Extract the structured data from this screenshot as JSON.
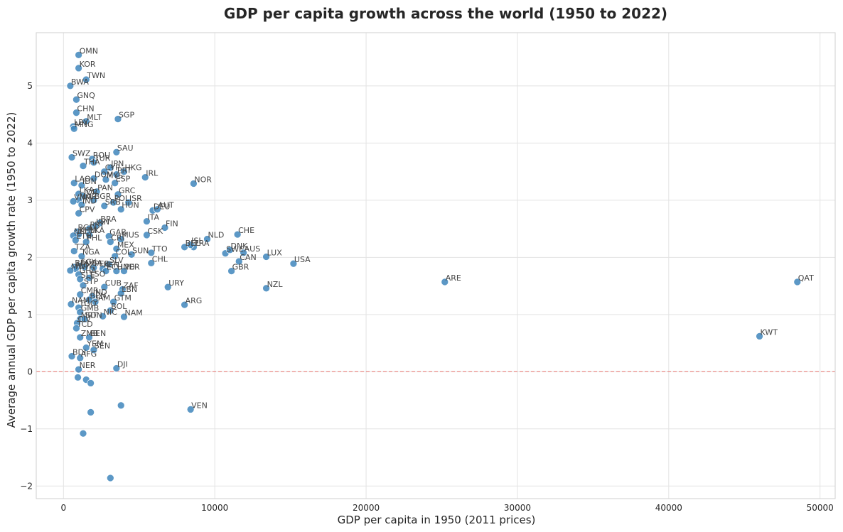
{
  "chart_data": {
    "type": "scatter",
    "title": "GDP per capita growth across the world (1950 to 2022)",
    "xlabel": "GDP per capita in 1950 (2011 prices)",
    "ylabel": "Average annual GDP per capita growth rate (1950 to 2022)",
    "xlim": [
      -1800,
      51000
    ],
    "ylim": [
      -2.22,
      5.93
    ],
    "xticks": [
      0,
      10000,
      20000,
      30000,
      40000,
      50000
    ],
    "yticks": [
      -2,
      -1,
      0,
      1,
      2,
      3,
      4,
      5
    ],
    "grid": true,
    "reference_line": {
      "y": 0,
      "style": "dashed",
      "color": "#e8736e"
    },
    "colors": {
      "point": "#3f86bc",
      "reference": "#e8736e"
    },
    "points": [
      {
        "x": 1000,
        "y": 5.54,
        "label": "OMN"
      },
      {
        "x": 1000,
        "y": 5.31,
        "label": "KOR"
      },
      {
        "x": 1500,
        "y": 5.11,
        "label": "TWN"
      },
      {
        "x": 450,
        "y": 5.0,
        "label": "BWA"
      },
      {
        "x": 850,
        "y": 4.76,
        "label": "GNQ"
      },
      {
        "x": 850,
        "y": 4.53,
        "label": "CHN"
      },
      {
        "x": 1500,
        "y": 4.38,
        "label": "MLT"
      },
      {
        "x": 3600,
        "y": 4.42,
        "label": "SGP"
      },
      {
        "x": 650,
        "y": 4.29,
        "label": "LBY"
      },
      {
        "x": 700,
        "y": 4.25,
        "label": "MNG"
      },
      {
        "x": 550,
        "y": 3.75,
        "label": "SWZ"
      },
      {
        "x": 1900,
        "y": 3.72,
        "label": "ROU"
      },
      {
        "x": 2000,
        "y": 3.66,
        "label": "TUR"
      },
      {
        "x": 3500,
        "y": 3.84,
        "label": "SAU"
      },
      {
        "x": 1300,
        "y": 3.6,
        "label": "THA"
      },
      {
        "x": 3100,
        "y": 3.57,
        "label": "JPN"
      },
      {
        "x": 2700,
        "y": 3.5,
        "label": "CYP"
      },
      {
        "x": 3500,
        "y": 3.45,
        "label": "PRT"
      },
      {
        "x": 4000,
        "y": 3.5,
        "label": "HKG"
      },
      {
        "x": 5400,
        "y": 3.4,
        "label": "IRL"
      },
      {
        "x": 2000,
        "y": 3.38,
        "label": "DOM"
      },
      {
        "x": 2800,
        "y": 3.36,
        "label": "MYS"
      },
      {
        "x": 3400,
        "y": 3.3,
        "label": "ESP"
      },
      {
        "x": 700,
        "y": 3.3,
        "label": "LAO"
      },
      {
        "x": 1200,
        "y": 3.26,
        "label": "IDN"
      },
      {
        "x": 8600,
        "y": 3.29,
        "label": "NOR"
      },
      {
        "x": 1000,
        "y": 3.11,
        "label": "LKA"
      },
      {
        "x": 2200,
        "y": 3.15,
        "label": "PAN"
      },
      {
        "x": 3600,
        "y": 3.1,
        "label": "GRC"
      },
      {
        "x": 1300,
        "y": 3.07,
        "label": "JOR"
      },
      {
        "x": 1000,
        "y": 3.0,
        "label": "MAR"
      },
      {
        "x": 2000,
        "y": 3.0,
        "label": "BGR"
      },
      {
        "x": 3300,
        "y": 2.96,
        "label": "POL"
      },
      {
        "x": 4300,
        "y": 2.96,
        "label": "ISR"
      },
      {
        "x": 650,
        "y": 2.98,
        "label": "VNM"
      },
      {
        "x": 1200,
        "y": 2.92,
        "label": "IND"
      },
      {
        "x": 2700,
        "y": 2.9,
        "label": "SRB"
      },
      {
        "x": 3800,
        "y": 2.84,
        "label": "HUN"
      },
      {
        "x": 5900,
        "y": 2.82,
        "label": "DEU"
      },
      {
        "x": 6200,
        "y": 2.84,
        "label": "AUT"
      },
      {
        "x": 1000,
        "y": 2.77,
        "label": "CPV"
      },
      {
        "x": 5500,
        "y": 2.63,
        "label": "ITA"
      },
      {
        "x": 2400,
        "y": 2.6,
        "label": "BRA"
      },
      {
        "x": 2100,
        "y": 2.55,
        "label": "IRN"
      },
      {
        "x": 1700,
        "y": 2.5,
        "label": "PRY"
      },
      {
        "x": 6700,
        "y": 2.52,
        "label": "FIN"
      },
      {
        "x": 900,
        "y": 2.45,
        "label": "BGD"
      },
      {
        "x": 1000,
        "y": 2.4,
        "label": "KHM"
      },
      {
        "x": 1700,
        "y": 2.4,
        "label": "LKA"
      },
      {
        "x": 3000,
        "y": 2.37,
        "label": "GAB"
      },
      {
        "x": 5500,
        "y": 2.39,
        "label": "CSK"
      },
      {
        "x": 11500,
        "y": 2.4,
        "label": "CHE"
      },
      {
        "x": 650,
        "y": 2.38,
        "label": "NPL"
      },
      {
        "x": 800,
        "y": 2.3,
        "label": "ETH"
      },
      {
        "x": 3800,
        "y": 2.32,
        "label": "MUS"
      },
      {
        "x": 9500,
        "y": 2.32,
        "label": "NLD"
      },
      {
        "x": 1500,
        "y": 2.27,
        "label": "PHL"
      },
      {
        "x": 3100,
        "y": 2.27,
        "label": "CRI"
      },
      {
        "x": 8000,
        "y": 2.18,
        "label": "BEL"
      },
      {
        "x": 8600,
        "y": 2.18,
        "label": "FRA"
      },
      {
        "x": 8400,
        "y": 2.22,
        "label": "ISL"
      },
      {
        "x": 3500,
        "y": 2.15,
        "label": "MEX"
      },
      {
        "x": 700,
        "y": 2.11,
        "label": "TZA"
      },
      {
        "x": 5800,
        "y": 2.08,
        "label": "TTO"
      },
      {
        "x": 10700,
        "y": 2.07,
        "label": "SWE"
      },
      {
        "x": 11000,
        "y": 2.13,
        "label": "DNK"
      },
      {
        "x": 11900,
        "y": 2.08,
        "label": "AUS"
      },
      {
        "x": 4500,
        "y": 2.05,
        "label": "SUN"
      },
      {
        "x": 3400,
        "y": 2.02,
        "label": "COL"
      },
      {
        "x": 1200,
        "y": 2.02,
        "label": "NGA"
      },
      {
        "x": 13400,
        "y": 2.01,
        "label": "LUX"
      },
      {
        "x": 11600,
        "y": 1.93,
        "label": "CAN"
      },
      {
        "x": 5800,
        "y": 1.9,
        "label": "CHL"
      },
      {
        "x": 15200,
        "y": 1.89,
        "label": "USA"
      },
      {
        "x": 3000,
        "y": 1.88,
        "label": "SLV"
      },
      {
        "x": 1100,
        "y": 1.85,
        "label": "EGY"
      },
      {
        "x": 700,
        "y": 1.83,
        "label": "BFA"
      },
      {
        "x": 1400,
        "y": 1.83,
        "label": "UGA"
      },
      {
        "x": 2000,
        "y": 1.82,
        "label": "PER"
      },
      {
        "x": 2600,
        "y": 1.8,
        "label": "KEN"
      },
      {
        "x": 800,
        "y": 1.8,
        "label": "MOZ"
      },
      {
        "x": 450,
        "y": 1.77,
        "label": "MWI"
      },
      {
        "x": 2800,
        "y": 1.76,
        "label": "ECU"
      },
      {
        "x": 3500,
        "y": 1.76,
        "label": "HND"
      },
      {
        "x": 4000,
        "y": 1.76,
        "label": "PER"
      },
      {
        "x": 11100,
        "y": 1.76,
        "label": "GBR"
      },
      {
        "x": 1000,
        "y": 1.7,
        "label": "GHA"
      },
      {
        "x": 1100,
        "y": 1.62,
        "label": "SLE"
      },
      {
        "x": 1700,
        "y": 1.64,
        "label": "LSO"
      },
      {
        "x": 25200,
        "y": 1.57,
        "label": "ARE"
      },
      {
        "x": 48500,
        "y": 1.57,
        "label": "QAT"
      },
      {
        "x": 1300,
        "y": 1.51,
        "label": "STP"
      },
      {
        "x": 2700,
        "y": 1.48,
        "label": "CUB"
      },
      {
        "x": 6900,
        "y": 1.48,
        "label": "URY"
      },
      {
        "x": 13400,
        "y": 1.46,
        "label": "NZL"
      },
      {
        "x": 3900,
        "y": 1.44,
        "label": "ZAF"
      },
      {
        "x": 3800,
        "y": 1.37,
        "label": "LBN"
      },
      {
        "x": 1100,
        "y": 1.35,
        "label": "CMR"
      },
      {
        "x": 1900,
        "y": 1.32,
        "label": "IND"
      },
      {
        "x": 1700,
        "y": 1.26,
        "label": "BEN"
      },
      {
        "x": 2100,
        "y": 1.22,
        "label": "JAM"
      },
      {
        "x": 3300,
        "y": 1.22,
        "label": "GTM"
      },
      {
        "x": 500,
        "y": 1.18,
        "label": "NAM"
      },
      {
        "x": 8000,
        "y": 1.17,
        "label": "ARG"
      },
      {
        "x": 1000,
        "y": 1.12,
        "label": "TGO"
      },
      {
        "x": 3100,
        "y": 1.07,
        "label": "BOL"
      },
      {
        "x": 1100,
        "y": 1.04,
        "label": "GMB"
      },
      {
        "x": 2600,
        "y": 0.97,
        "label": "NIC"
      },
      {
        "x": 4000,
        "y": 0.96,
        "label": "NAM"
      },
      {
        "x": 1100,
        "y": 0.92,
        "label": "MRT"
      },
      {
        "x": 1400,
        "y": 0.92,
        "label": "SDN"
      },
      {
        "x": 900,
        "y": 0.85,
        "label": "CIV"
      },
      {
        "x": 850,
        "y": 0.76,
        "label": "TCD"
      },
      {
        "x": 1100,
        "y": 0.6,
        "label": "ZMB"
      },
      {
        "x": 1700,
        "y": 0.6,
        "label": "BEN"
      },
      {
        "x": 1500,
        "y": 0.42,
        "label": "YEM"
      },
      {
        "x": 2000,
        "y": 0.38,
        "label": "SEN"
      },
      {
        "x": 550,
        "y": 0.27,
        "label": "BDI"
      },
      {
        "x": 1100,
        "y": 0.24,
        "label": "AFG"
      },
      {
        "x": 1000,
        "y": 0.04,
        "label": "NER"
      },
      {
        "x": 3500,
        "y": 0.06,
        "label": "DJI"
      },
      {
        "x": 950,
        "y": -0.1
      },
      {
        "x": 1500,
        "y": -0.14
      },
      {
        "x": 1800,
        "y": -0.2
      },
      {
        "x": 3800,
        "y": -0.59
      },
      {
        "x": 8400,
        "y": -0.66,
        "label": "VEN"
      },
      {
        "x": 1800,
        "y": -0.71
      },
      {
        "x": 1300,
        "y": -1.08
      },
      {
        "x": 46000,
        "y": 0.62,
        "label": "KWT"
      },
      {
        "x": 3100,
        "y": -1.86
      }
    ]
  }
}
